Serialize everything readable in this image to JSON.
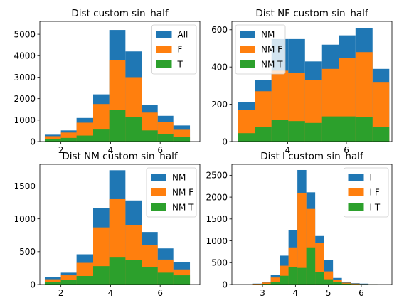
{
  "colors": {
    "series0": "#1f77b4",
    "series1": "#ff7f0e",
    "series2": "#2ca02c"
  },
  "chart_data": [
    {
      "type": "bar",
      "title": "Dist custom sin_half",
      "xlim": [
        1.15,
        7.6
      ],
      "ylim": [
        0,
        5600
      ],
      "xticks": [
        2,
        4,
        6
      ],
      "yticks": [
        0,
        1000,
        2000,
        3000,
        4000,
        5000
      ],
      "legend_placement": "top-right",
      "bin_edges": [
        1.35,
        2.0,
        2.63,
        3.3,
        3.95,
        4.6,
        5.25,
        5.9,
        6.53,
        7.2
      ],
      "series": [
        {
          "name": "All",
          "values": [
            320,
            520,
            1100,
            2200,
            5200,
            4200,
            1700,
            1200,
            750,
            100
          ]
        },
        {
          "name": "F",
          "values": [
            250,
            420,
            880,
            1750,
            3800,
            3000,
            1350,
            900,
            550,
            80
          ]
        },
        {
          "name": "T",
          "values": [
            100,
            170,
            280,
            560,
            1480,
            1150,
            520,
            350,
            220,
            40
          ]
        }
      ]
    },
    {
      "type": "bar",
      "title": "Dist NF custom sin_half",
      "xlim": [
        2.1,
        7.55
      ],
      "ylim": [
        0,
        645
      ],
      "xticks": [
        4,
        6
      ],
      "yticks": [
        0,
        200,
        400,
        600
      ],
      "legend_placement": "top-left",
      "bin_edges": [
        2.3,
        2.88,
        3.45,
        4.02,
        4.59,
        5.17,
        5.74,
        6.31,
        6.89,
        7.46
      ],
      "series": [
        {
          "name": "NM",
          "values": [
            210,
            330,
            550,
            550,
            430,
            520,
            570,
            610,
            390,
            55
          ]
        },
        {
          "name": "NM F",
          "values": [
            170,
            270,
            380,
            370,
            330,
            390,
            450,
            480,
            320,
            45
          ]
        },
        {
          "name": "NM T",
          "values": [
            45,
            80,
            115,
            110,
            100,
            135,
            135,
            130,
            80,
            12
          ]
        }
      ]
    },
    {
      "type": "bar",
      "title": "Dist NM custom sin_half",
      "xlim": [
        1.15,
        7.6
      ],
      "ylim": [
        0,
        1830
      ],
      "xticks": [
        2,
        4,
        6
      ],
      "yticks": [
        0,
        500,
        1000,
        1500
      ],
      "legend_placement": "top-right",
      "bin_edges": [
        1.35,
        2.0,
        2.63,
        3.3,
        3.95,
        4.6,
        5.25,
        5.9,
        6.53,
        7.2
      ],
      "series": [
        {
          "name": "NM",
          "values": [
            110,
            180,
            460,
            1160,
            1740,
            1280,
            800,
            550,
            340,
            30
          ]
        },
        {
          "name": "NM F",
          "values": [
            80,
            140,
            330,
            870,
            1300,
            900,
            600,
            380,
            230,
            20
          ]
        },
        {
          "name": "NM T",
          "values": [
            40,
            70,
            130,
            280,
            410,
            370,
            270,
            180,
            140,
            15
          ]
        }
      ]
    },
    {
      "type": "bar",
      "title": "Dist I custom sin_half",
      "xlim": [
        2.07,
        6.93
      ],
      "ylim": [
        0,
        2750
      ],
      "xticks": [
        3,
        4,
        5,
        6
      ],
      "yticks": [
        0,
        500,
        1000,
        1500,
        2000,
        2500
      ],
      "legend_placement": "top-right",
      "bin_edges": [
        2.71,
        2.98,
        3.25,
        3.52,
        3.79,
        4.06,
        4.33,
        4.6,
        4.87,
        5.14,
        5.41,
        5.68,
        5.95,
        6.22,
        6.49
      ],
      "series": [
        {
          "name": "I",
          "values": [
            20,
            60,
            220,
            660,
            1250,
            2620,
            2110,
            1110,
            560,
            150,
            60,
            30,
            20,
            5
          ]
        },
        {
          "name": "I F",
          "values": [
            15,
            45,
            160,
            430,
            850,
            2100,
            1730,
            960,
            300,
            100,
            40,
            20,
            10,
            3
          ]
        },
        {
          "name": "I T",
          "values": [
            5,
            15,
            60,
            200,
            400,
            380,
            850,
            290,
            120,
            50,
            20,
            10,
            5,
            2
          ]
        }
      ]
    }
  ]
}
